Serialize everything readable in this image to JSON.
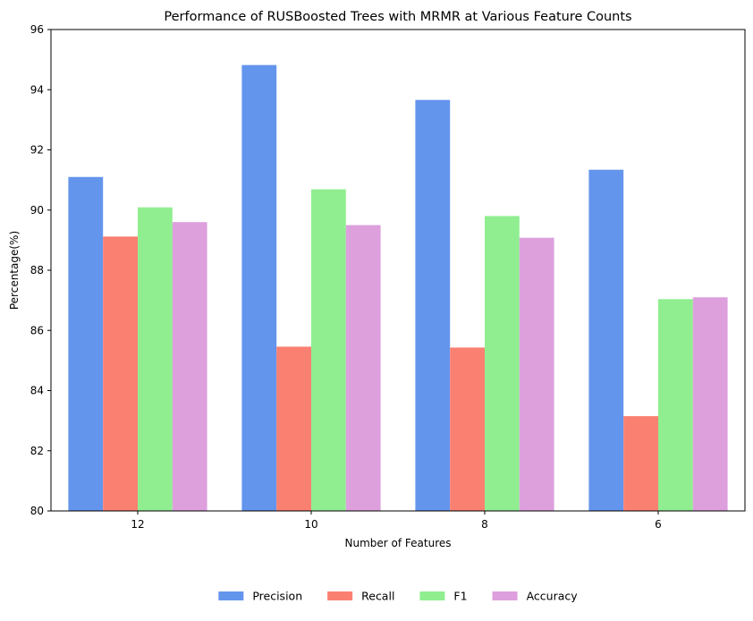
{
  "chart_data": {
    "type": "bar",
    "title": "Performance of RUSBoosted Trees with MRMR at Various Feature Counts",
    "xlabel": "Number of Features",
    "ylabel": "Percentage(%)",
    "categories": [
      "12",
      "10",
      "8",
      "6"
    ],
    "ylim": [
      80,
      96
    ],
    "yticks": [
      80,
      82,
      84,
      86,
      88,
      90,
      92,
      94,
      96
    ],
    "grid": false,
    "legend_position": "bottom-center",
    "series": [
      {
        "name": "Precision",
        "color": "#6495ED",
        "values": [
          91.1,
          94.82,
          93.66,
          91.34
        ]
      },
      {
        "name": "Recall",
        "color": "#FA8072",
        "values": [
          89.12,
          85.46,
          85.43,
          83.15
        ]
      },
      {
        "name": "F1",
        "color": "#90EE90",
        "values": [
          90.09,
          90.69,
          89.8,
          87.04
        ]
      },
      {
        "name": "Accuracy",
        "color": "#DDA0DD",
        "values": [
          89.6,
          89.5,
          89.08,
          87.1
        ]
      }
    ]
  }
}
